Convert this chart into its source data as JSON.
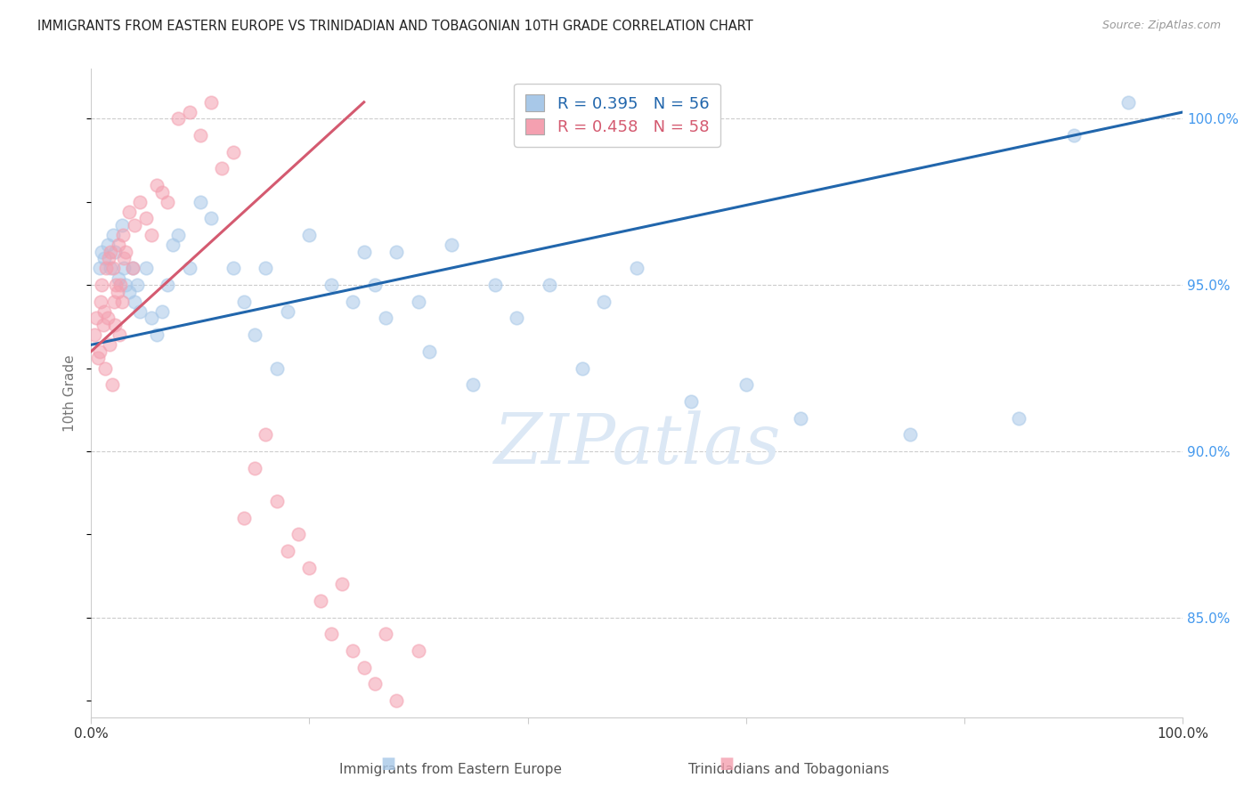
{
  "title": "IMMIGRANTS FROM EASTERN EUROPE VS TRINIDADIAN AND TOBAGONIAN 10TH GRADE CORRELATION CHART",
  "source": "Source: ZipAtlas.com",
  "ylabel": "10th Grade",
  "r_blue": 0.395,
  "n_blue": 56,
  "r_pink": 0.458,
  "n_pink": 58,
  "legend_label_blue": "Immigrants from Eastern Europe",
  "legend_label_pink": "Trinidadians and Tobagonians",
  "xlim": [
    0.0,
    100.0
  ],
  "ylim": [
    82.0,
    101.5
  ],
  "yticks": [
    85.0,
    90.0,
    95.0,
    100.0
  ],
  "ytick_labels": [
    "85.0%",
    "90.0%",
    "95.0%",
    "100.0%"
  ],
  "xticks": [
    0.0,
    20.0,
    40.0,
    60.0,
    80.0,
    100.0
  ],
  "xtick_labels": [
    "0.0%",
    "",
    "",
    "",
    "",
    "100.0%"
  ],
  "blue_color": "#a8c8e8",
  "blue_line_color": "#2166ac",
  "pink_color": "#f4a0b0",
  "pink_line_color": "#d45a70",
  "grid_color": "#cccccc",
  "title_color": "#222222",
  "axis_label_color": "#777777",
  "right_tick_color": "#4499ee",
  "watermark_color": "#dce8f5",
  "blue_scatter_x": [
    0.8,
    1.0,
    1.2,
    1.5,
    1.8,
    2.0,
    2.2,
    2.5,
    2.8,
    3.0,
    3.2,
    3.5,
    3.8,
    4.0,
    4.2,
    4.5,
    5.0,
    5.5,
    6.0,
    6.5,
    7.0,
    7.5,
    8.0,
    9.0,
    10.0,
    11.0,
    13.0,
    14.0,
    15.0,
    16.0,
    17.0,
    18.0,
    20.0,
    22.0,
    24.0,
    25.0,
    26.0,
    27.0,
    28.0,
    30.0,
    31.0,
    33.0,
    35.0,
    37.0,
    39.0,
    42.0,
    45.0,
    47.0,
    50.0,
    55.0,
    60.0,
    65.0,
    75.0,
    85.0,
    90.0,
    95.0
  ],
  "blue_scatter_y": [
    95.5,
    96.0,
    95.8,
    96.2,
    95.5,
    96.5,
    96.0,
    95.2,
    96.8,
    95.5,
    95.0,
    94.8,
    95.5,
    94.5,
    95.0,
    94.2,
    95.5,
    94.0,
    93.5,
    94.2,
    95.0,
    96.2,
    96.5,
    95.5,
    97.5,
    97.0,
    95.5,
    94.5,
    93.5,
    95.5,
    92.5,
    94.2,
    96.5,
    95.0,
    94.5,
    96.0,
    95.0,
    94.0,
    96.0,
    94.5,
    93.0,
    96.2,
    92.0,
    95.0,
    94.0,
    95.0,
    92.5,
    94.5,
    95.5,
    91.5,
    92.0,
    91.0,
    90.5,
    91.0,
    99.5,
    100.5
  ],
  "pink_scatter_x": [
    0.3,
    0.5,
    0.6,
    0.8,
    0.9,
    1.0,
    1.1,
    1.2,
    1.3,
    1.4,
    1.5,
    1.6,
    1.7,
    1.8,
    1.9,
    2.0,
    2.1,
    2.2,
    2.3,
    2.4,
    2.5,
    2.6,
    2.7,
    2.8,
    2.9,
    3.0,
    3.2,
    3.5,
    3.8,
    4.0,
    4.5,
    5.0,
    5.5,
    6.0,
    6.5,
    7.0,
    8.0,
    9.0,
    10.0,
    11.0,
    12.0,
    13.0,
    14.0,
    15.0,
    16.0,
    17.0,
    18.0,
    19.0,
    20.0,
    21.0,
    22.0,
    23.0,
    24.0,
    25.0,
    26.0,
    27.0,
    28.0,
    30.0
  ],
  "pink_scatter_y": [
    93.5,
    94.0,
    92.8,
    93.0,
    94.5,
    95.0,
    93.8,
    94.2,
    92.5,
    95.5,
    94.0,
    95.8,
    93.2,
    96.0,
    92.0,
    95.5,
    94.5,
    93.8,
    95.0,
    94.8,
    96.2,
    93.5,
    95.0,
    94.5,
    96.5,
    95.8,
    96.0,
    97.2,
    95.5,
    96.8,
    97.5,
    97.0,
    96.5,
    98.0,
    97.8,
    97.5,
    100.0,
    100.2,
    99.5,
    100.5,
    98.5,
    99.0,
    88.0,
    89.5,
    90.5,
    88.5,
    87.0,
    87.5,
    86.5,
    85.5,
    84.5,
    86.0,
    84.0,
    83.5,
    83.0,
    84.5,
    82.5,
    84.0
  ],
  "blue_trend_x": [
    0.0,
    100.0
  ],
  "blue_trend_y": [
    93.2,
    100.2
  ],
  "pink_trend_x": [
    0.0,
    25.0
  ],
  "pink_trend_y": [
    93.0,
    100.5
  ]
}
